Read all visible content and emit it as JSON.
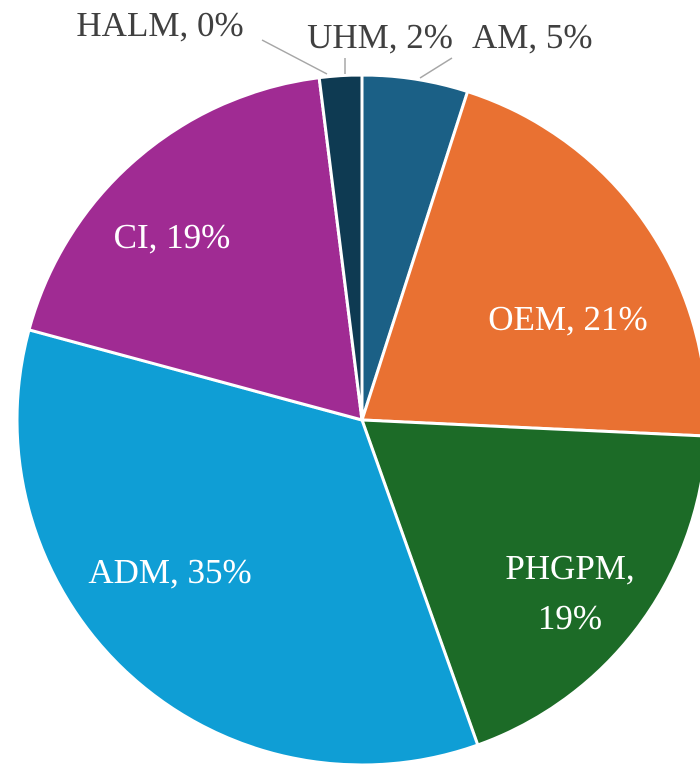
{
  "chart_data": {
    "type": "pie",
    "values": [
      5,
      21,
      19,
      35,
      19,
      0,
      2
    ],
    "value_labels": [
      "AM, 5%",
      "OEM, 21%",
      "PHGPM, 19%",
      "ADM, 35%",
      "CI, 19%",
      "HALM, 0%",
      "UHM, 2%"
    ],
    "colors": [
      "#1b6086",
      "#e97132",
      "#1c6b27",
      "#0f9ed5",
      "#a02b93",
      "#4ea72e",
      "#0e3a52"
    ]
  }
}
